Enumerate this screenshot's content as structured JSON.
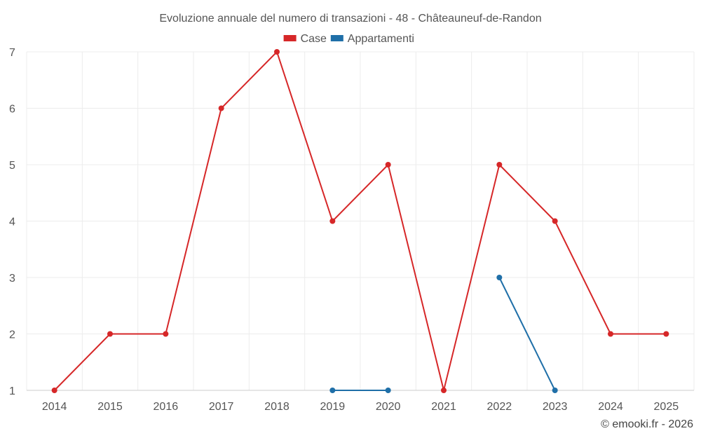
{
  "chart_data": {
    "type": "line",
    "title": "Evoluzione annuale del numero di transazioni - 48 - Châteauneuf-de-Randon",
    "xlabel": "",
    "ylabel": "",
    "categories": [
      "2014",
      "2015",
      "2016",
      "2017",
      "2018",
      "2019",
      "2020",
      "2021",
      "2022",
      "2023",
      "2024",
      "2025"
    ],
    "ylim": [
      1,
      7
    ],
    "yticks": [
      "1",
      "2",
      "3",
      "4",
      "5",
      "6",
      "7"
    ],
    "grid": true,
    "legend_position": "top-center",
    "series": [
      {
        "name": "Case",
        "color": "#d62728",
        "values": [
          1,
          2,
          2,
          6,
          7,
          4,
          5,
          1,
          5,
          4,
          2,
          2
        ]
      },
      {
        "name": "Appartamenti",
        "color": "#1f6fa8",
        "values": [
          null,
          null,
          null,
          null,
          null,
          1,
          1,
          null,
          3,
          1,
          null,
          null
        ]
      }
    ]
  },
  "credit": "© emooki.fr - 2026"
}
